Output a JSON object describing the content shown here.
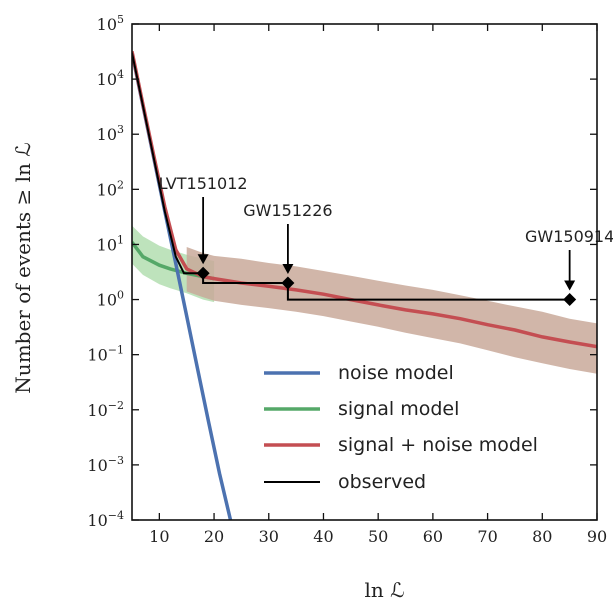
{
  "chart_data": {
    "type": "line",
    "xlabel": "ln ℒ",
    "ylabel": "Number of events ≥ ln ℒ",
    "xlim": [
      5,
      90
    ],
    "ylim": [
      0.0001,
      100000
    ],
    "yscale": "log",
    "grid": false,
    "legend_position": "lower-right",
    "x_ticks": [
      10,
      20,
      30,
      40,
      50,
      60,
      70,
      80,
      90
    ],
    "y_ticks": [
      {
        "value": 100000,
        "base": "10",
        "exp": "5"
      },
      {
        "value": 10000,
        "base": "10",
        "exp": "4"
      },
      {
        "value": 1000,
        "base": "10",
        "exp": "3"
      },
      {
        "value": 100,
        "base": "10",
        "exp": "2"
      },
      {
        "value": 10,
        "base": "10",
        "exp": "1"
      },
      {
        "value": 1,
        "base": "10",
        "exp": "0"
      },
      {
        "value": 0.1,
        "base": "10",
        "exp": "−1"
      },
      {
        "value": 0.01,
        "base": "10",
        "exp": "−2"
      },
      {
        "value": 0.001,
        "base": "10",
        "exp": "−3"
      },
      {
        "value": 0.0001,
        "base": "10",
        "exp": "−4"
      }
    ],
    "series": [
      {
        "name": "noise model",
        "color": "#4c72b0",
        "x": [
          5,
          7,
          9,
          11,
          13,
          15,
          17,
          19,
          21,
          23
        ],
        "y": [
          30000,
          3300,
          360,
          40,
          4.5,
          0.5,
          0.055,
          0.006,
          0.0007,
          0.0001
        ]
      },
      {
        "name": "signal model",
        "color": "#55a868",
        "band_color": "#a8d9a5",
        "x": [
          5,
          7,
          10,
          12,
          15,
          18,
          20
        ],
        "y": [
          11,
          6,
          4.2,
          3.6,
          3.0,
          2.6,
          2.4
        ],
        "lower": [
          4.5,
          2.8,
          1.9,
          1.6,
          1.3,
          1.0,
          0.9
        ],
        "upper": [
          22,
          14,
          9.5,
          8,
          6.5,
          5.5,
          5
        ]
      },
      {
        "name": "signal + noise model",
        "color": "#c44e52",
        "band_color": "#c9a99a",
        "x": [
          5,
          7,
          9,
          11,
          13,
          15,
          18,
          20,
          25,
          30,
          35,
          40,
          45,
          50,
          55,
          60,
          65,
          70,
          75,
          80,
          85,
          90
        ],
        "y": [
          32000,
          3500,
          400,
          48,
          8,
          3.6,
          2.6,
          2.4,
          2.0,
          1.75,
          1.5,
          1.25,
          1.0,
          0.8,
          0.65,
          0.55,
          0.45,
          0.35,
          0.28,
          0.21,
          0.17,
          0.14
        ],
        "lower": [
          null,
          null,
          null,
          null,
          null,
          1.4,
          1.1,
          0.95,
          0.8,
          0.7,
          0.6,
          0.5,
          0.4,
          0.32,
          0.25,
          0.2,
          0.16,
          0.12,
          0.09,
          0.07,
          0.055,
          0.045
        ],
        "upper": [
          null,
          null,
          null,
          null,
          null,
          9,
          7,
          6.2,
          5.5,
          4.6,
          4.0,
          3.3,
          2.7,
          2.2,
          1.8,
          1.5,
          1.2,
          0.95,
          0.75,
          0.6,
          0.45,
          0.37
        ]
      },
      {
        "name": "observed",
        "color": "#000000",
        "x": [
          5,
          7,
          9,
          11,
          13,
          14.5,
          14.5,
          18,
          18,
          33.5,
          33.5,
          85
        ],
        "y": [
          30000,
          3300,
          360,
          40,
          6,
          3,
          3,
          3,
          2,
          2,
          1,
          1
        ]
      }
    ],
    "markers": [
      {
        "x": 18,
        "y": 3
      },
      {
        "x": 33.5,
        "y": 2
      },
      {
        "x": 85,
        "y": 1
      }
    ],
    "annotations": [
      {
        "text": "LVT151012",
        "x": 18,
        "y": 3
      },
      {
        "text": "GW151226",
        "x": 33.5,
        "y": 2
      },
      {
        "text": "GW150914",
        "x": 85,
        "y": 1
      }
    ]
  }
}
